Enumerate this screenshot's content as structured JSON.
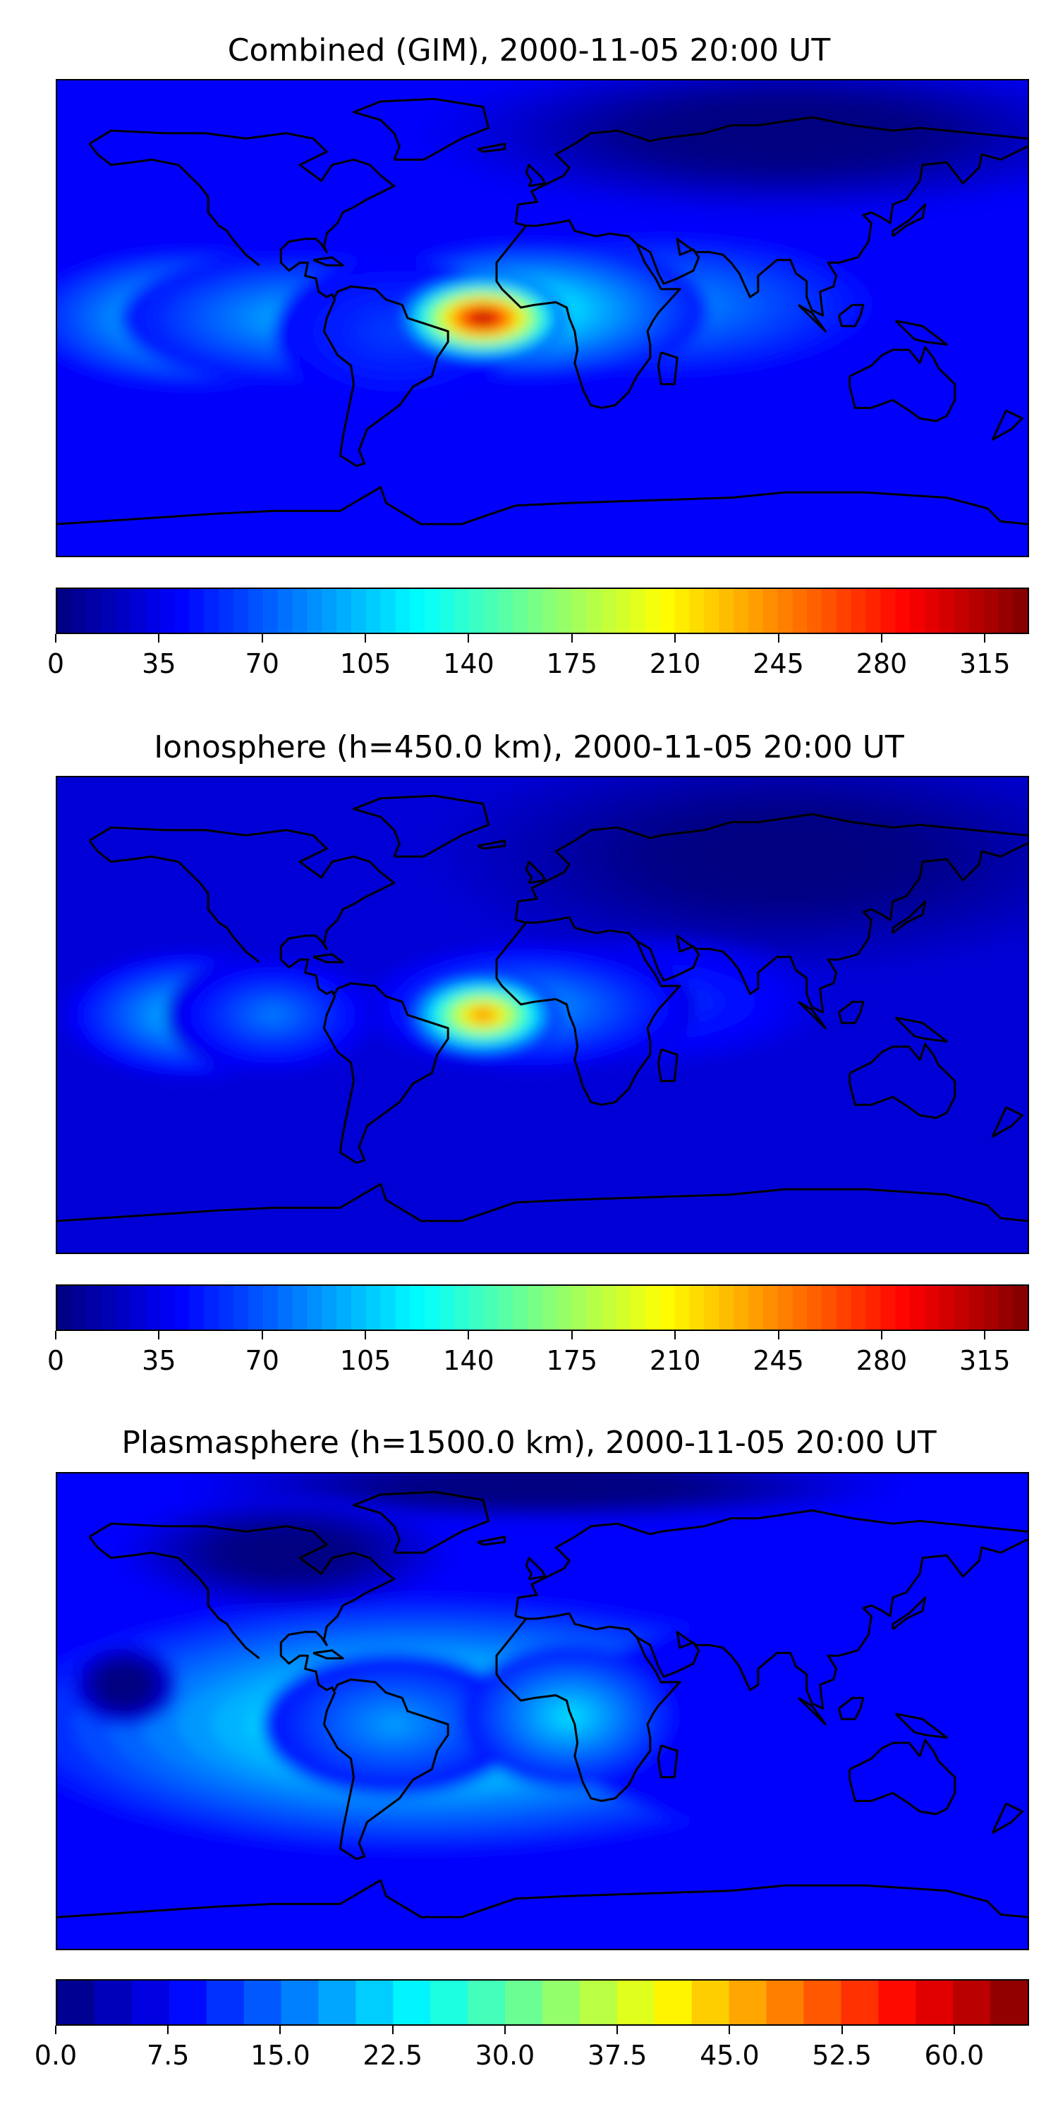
{
  "colormap": "jet",
  "colormap_stops": [
    "#00007f",
    "#0000ff",
    "#007fff",
    "#00ffff",
    "#7fff7f",
    "#ffff00",
    "#ff7f00",
    "#ff0000",
    "#7f0000"
  ],
  "coastline_color": "#000000",
  "chart_data": [
    {
      "type": "heatmap",
      "title": "Combined (GIM), 2000-11-05 20:00 UT",
      "projection": "equirectangular world map",
      "xlim": [
        -180,
        180
      ],
      "ylim": [
        -90,
        90
      ],
      "colorbar": {
        "range": [
          0,
          330
        ],
        "levels": 66,
        "ticks": [
          0,
          35,
          70,
          105,
          140,
          175,
          210,
          245,
          280,
          315
        ],
        "tick_labels": [
          "0",
          "35",
          "70",
          "105",
          "140",
          "175",
          "210",
          "245",
          "280",
          "315"
        ]
      },
      "background_value": 40,
      "features": [
        {
          "lon": -22,
          "lat": 0,
          "value": 320,
          "sx": 14,
          "sy": 7
        },
        {
          "lon": -5,
          "lat": 3,
          "value": 130,
          "sx": 30,
          "sy": 12
        },
        {
          "lon": -130,
          "lat": 0,
          "value": 120,
          "sx": 28,
          "sy": 12
        },
        {
          "lon": -90,
          "lat": 0,
          "value": 100,
          "sx": 30,
          "sy": 11
        },
        {
          "lon": 45,
          "lat": 5,
          "value": 90,
          "sx": 35,
          "sy": 12
        },
        {
          "lon": -55,
          "lat": -5,
          "value": 60,
          "sx": 20,
          "sy": 12
        },
        {
          "lon": 90,
          "lat": 70,
          "value": -25,
          "sx": 60,
          "sy": 14
        }
      ]
    },
    {
      "type": "heatmap",
      "title": "Ionosphere  (h=450.0 km), 2000-11-05 20:00 UT",
      "projection": "equirectangular world map",
      "xlim": [
        -180,
        180
      ],
      "ylim": [
        -90,
        90
      ],
      "colorbar": {
        "range": [
          0,
          330
        ],
        "levels": 66,
        "ticks": [
          0,
          35,
          70,
          105,
          140,
          175,
          210,
          245,
          280,
          315
        ],
        "tick_labels": [
          "0",
          "35",
          "70",
          "105",
          "140",
          "175",
          "210",
          "245",
          "280",
          "315"
        ]
      },
      "background_value": 28,
      "features": [
        {
          "lon": -22,
          "lat": 0,
          "value": 250,
          "sx": 13,
          "sy": 7
        },
        {
          "lon": -5,
          "lat": 3,
          "value": 95,
          "sx": 28,
          "sy": 11
        },
        {
          "lon": -130,
          "lat": 0,
          "value": 110,
          "sx": 22,
          "sy": 11
        },
        {
          "lon": -100,
          "lat": 0,
          "value": 80,
          "sx": 18,
          "sy": 10
        },
        {
          "lon": 40,
          "lat": 5,
          "value": 60,
          "sx": 30,
          "sy": 11
        },
        {
          "lon": 90,
          "lat": 60,
          "value": -15,
          "sx": 60,
          "sy": 20
        }
      ]
    },
    {
      "type": "heatmap",
      "title": "Plasmasphere (h=1500.0 km), 2000-11-05 20:00 UT",
      "projection": "equirectangular world map",
      "xlim": [
        -180,
        180
      ],
      "ylim": [
        -90,
        90
      ],
      "colorbar": {
        "range": [
          0,
          65
        ],
        "levels": 26,
        "ticks": [
          0.0,
          7.5,
          15.0,
          22.5,
          30.0,
          37.5,
          45.0,
          52.5,
          60.0
        ],
        "tick_labels": [
          "0.0",
          "7.5",
          "15.0",
          "22.5",
          "30.0",
          "37.5",
          "45.0",
          "52.5",
          "60.0"
        ]
      },
      "background_value": 8,
      "features": [
        {
          "lon": -45,
          "lat": -5,
          "value": 28,
          "sx": 70,
          "sy": 22
        },
        {
          "lon": -55,
          "lat": -5,
          "value": 18,
          "sx": 22,
          "sy": 12
        },
        {
          "lon": 10,
          "lat": -2,
          "value": 22,
          "sx": 18,
          "sy": 12
        },
        {
          "lon": 100,
          "lat": -5,
          "value": 8,
          "sx": 45,
          "sy": 18
        },
        {
          "lon": -155,
          "lat": 10,
          "value": -6,
          "sx": 9,
          "sy": 7
        },
        {
          "lon": -95,
          "lat": 60,
          "value": -5,
          "sx": 28,
          "sy": 10
        },
        {
          "lon": 0,
          "lat": 85,
          "value": -6,
          "sx": 60,
          "sy": 6
        }
      ]
    }
  ]
}
